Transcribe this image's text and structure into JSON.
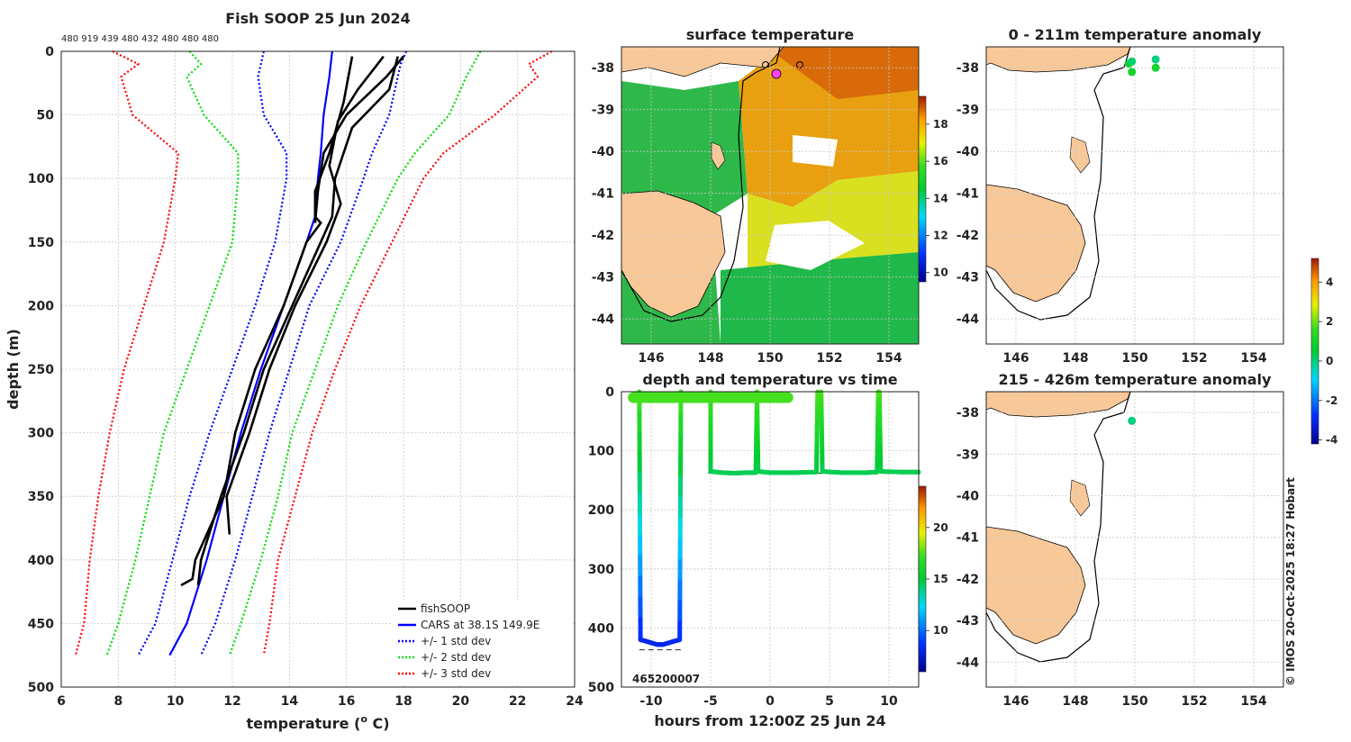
{
  "chart_data": [
    {
      "id": "profile",
      "type": "line",
      "title": "Fish SOOP 25 Jun 2024",
      "xlabel": "temperature",
      "xlabel_unit": "(",
      "xlabel_sup": "o",
      "xlabel_unit_end": " C)",
      "ylabel": "depth (m)",
      "xlim": [
        6,
        24
      ],
      "ylim": [
        500,
        0
      ],
      "xticks": [
        "6",
        "8",
        "10",
        "12",
        "14",
        "16",
        "18",
        "20",
        "22",
        "24"
      ],
      "yticks": [
        "0",
        "50",
        "100",
        "150",
        "200",
        "250",
        "300",
        "350",
        "400",
        "450",
        "500"
      ],
      "counts_label": "480 919 439 480 432 480 480 480",
      "legend": [
        "fishSOOP",
        "CARS at 38.1S 149.9E",
        "+/- 1 std dev",
        "+/- 2 std dev",
        "+/- 3 std dev"
      ],
      "series": [
        {
          "name": "CARS at 38.1S 149.9E",
          "color": "#0000ff",
          "depth": [
            0,
            20,
            50,
            80,
            100,
            130,
            150,
            200,
            250,
            300,
            350,
            400,
            450,
            475
          ],
          "temp": [
            15.5,
            15.4,
            15.2,
            15.1,
            15.0,
            14.9,
            14.6,
            13.8,
            13.0,
            12.3,
            11.7,
            11.1,
            10.4,
            9.8
          ]
        },
        {
          "name": "+1 std dev",
          "color": "#0000ff",
          "depth": [
            0,
            10,
            50,
            80,
            100,
            150,
            200,
            250,
            300,
            350,
            400,
            450,
            475
          ],
          "temp": [
            18.1,
            17.9,
            17.5,
            16.9,
            16.6,
            15.8,
            14.7,
            14.0,
            13.3,
            12.7,
            12.1,
            11.4,
            10.9
          ]
        },
        {
          "name": "-1 std dev",
          "color": "#0000ff",
          "depth": [
            0,
            20,
            50,
            80,
            100,
            150,
            200,
            250,
            300,
            350,
            400,
            450,
            475
          ],
          "temp": [
            13.1,
            12.9,
            13.1,
            13.9,
            13.9,
            13.5,
            12.8,
            12.0,
            11.2,
            10.5,
            9.9,
            9.3,
            8.7
          ]
        },
        {
          "name": "+2 std dev",
          "color": "#00dd00",
          "depth": [
            0,
            20,
            50,
            80,
            100,
            150,
            200,
            250,
            300,
            350,
            400,
            450,
            475
          ],
          "temp": [
            20.7,
            20.2,
            19.6,
            18.4,
            17.8,
            16.7,
            15.7,
            14.9,
            14.1,
            13.6,
            13.0,
            12.3,
            11.9
          ]
        },
        {
          "name": "-2 std dev",
          "color": "#00dd00",
          "depth": [
            0,
            10,
            20,
            50,
            80,
            100,
            150,
            200,
            250,
            300,
            350,
            400,
            450,
            475
          ],
          "temp": [
            10.5,
            10.9,
            10.4,
            11.0,
            12.2,
            12.2,
            12.0,
            11.2,
            10.4,
            9.6,
            9.1,
            8.6,
            8.0,
            7.6
          ]
        },
        {
          "name": "+3 std dev",
          "color": "#ff0000",
          "depth": [
            0,
            10,
            20,
            50,
            80,
            100,
            150,
            200,
            250,
            300,
            350,
            400,
            450,
            475
          ],
          "temp": [
            23.2,
            22.4,
            22.7,
            21.2,
            19.4,
            18.7,
            17.6,
            16.5,
            15.6,
            14.8,
            14.2,
            13.6,
            13.3,
            13.1
          ]
        },
        {
          "name": "-3 std dev",
          "color": "#ff0000",
          "depth": [
            0,
            10,
            20,
            50,
            80,
            100,
            150,
            200,
            250,
            300,
            350,
            400,
            450,
            475
          ],
          "temp": [
            7.8,
            8.7,
            8.1,
            8.5,
            10.1,
            10.0,
            9.6,
            8.9,
            8.2,
            7.7,
            7.3,
            7.0,
            6.8,
            6.5
          ]
        },
        {
          "name": "fishSOOP",
          "color": "#000000",
          "depth": [
            4,
            40,
            80,
            110,
            130,
            135,
            150,
            200,
            250,
            300,
            350,
            400,
            415,
            420
          ],
          "temp": [
            16.2,
            15.9,
            15.4,
            14.9,
            14.9,
            15.1,
            14.6,
            13.8,
            12.8,
            12.1,
            11.7,
            10.7,
            10.6,
            10.2
          ]
        },
        {
          "name": "fishSOOP",
          "color": "#000000",
          "depth": [
            4,
            30,
            55,
            90,
            120,
            150,
            200,
            250,
            300,
            350,
            380
          ],
          "temp": [
            17.3,
            16.4,
            15.7,
            15.4,
            15.8,
            15.3,
            14.2,
            13.3,
            12.6,
            11.8,
            11.9
          ]
        },
        {
          "name": "fishSOOP",
          "color": "#000000",
          "depth": [
            4,
            20,
            50,
            80,
            110,
            135
          ],
          "temp": [
            18.0,
            17.4,
            16.0,
            15.2,
            15.0,
            14.9
          ]
        },
        {
          "name": "fishSOOP",
          "color": "#000000",
          "depth": [
            4,
            30,
            60,
            100,
            130,
            150,
            200,
            250,
            300,
            350,
            400,
            420
          ],
          "temp": [
            17.8,
            17.5,
            16.2,
            15.6,
            15.5,
            15.1,
            14.1,
            13.1,
            12.4,
            11.6,
            10.9,
            10.8
          ]
        }
      ]
    },
    {
      "id": "sst",
      "type": "heatmap",
      "title": "surface temperature",
      "xticks": [
        "146",
        "148",
        "150",
        "152",
        "154"
      ],
      "yticks": [
        "-38",
        "-39",
        "-40",
        "-41",
        "-42",
        "-43",
        "-44"
      ],
      "xlim": [
        145,
        155
      ],
      "ylim": [
        -44.6,
        -37.5
      ],
      "colorbar": {
        "min": 9.5,
        "max": 19.5,
        "ticks": [
          "10",
          "12",
          "14",
          "16",
          "18"
        ]
      }
    },
    {
      "id": "timeseries",
      "type": "line",
      "title": "depth and temperature vs time",
      "xlabel": "hours from 12:00Z 25 Jun 24",
      "xticks": [
        "-10",
        "-5",
        "0",
        "5",
        "10"
      ],
      "yticks": [
        "0",
        "100",
        "200",
        "300",
        "400",
        "500"
      ],
      "xlim": [
        -12.5,
        12.5
      ],
      "ylim": [
        500,
        0
      ],
      "bottom_label": "465200007",
      "colorbar": {
        "min": 6,
        "max": 24,
        "ticks": [
          "10",
          "15",
          "20"
        ]
      },
      "segments": [
        {
          "t": [
            -11,
            -10.9,
            -10.5,
            -10,
            -9.5,
            -9,
            -8.5,
            -8,
            -7.6,
            -7.5
          ],
          "d": [
            0,
            420,
            422,
            425,
            428,
            428,
            425,
            422,
            420,
            0
          ]
        },
        {
          "t": [
            -5,
            -5,
            -4,
            -3,
            -2,
            -1.2,
            -1.1
          ],
          "d": [
            0,
            135,
            137,
            138,
            137,
            137,
            0
          ]
        },
        {
          "t": [
            -1.1,
            -1,
            0,
            2,
            3.9,
            4
          ],
          "d": [
            0,
            135,
            137,
            137,
            136,
            0
          ]
        },
        {
          "t": [
            4.3,
            4.4,
            6,
            8,
            9,
            9.1
          ],
          "d": [
            0,
            135,
            137,
            137,
            136,
            0
          ]
        },
        {
          "t": [
            9.2,
            9.3,
            11,
            12.5
          ],
          "d": [
            0,
            135,
            136,
            136
          ]
        }
      ],
      "surface": {
        "t": [
          -11.5,
          1.5
        ],
        "d": [
          10,
          10
        ]
      },
      "dashes": [
        {
          "t": [
            -11,
            -7.3
          ],
          "d": 437
        },
        {
          "t": [
            -5.2,
            12.5
          ],
          "d": 138
        }
      ]
    },
    {
      "id": "anomaly_shallow",
      "type": "scatter",
      "title": "0 - 211m temperature anomaly",
      "xticks": [
        "146",
        "148",
        "150",
        "152",
        "154"
      ],
      "yticks": [
        "-38",
        "-39",
        "-40",
        "-41",
        "-42",
        "-43",
        "-44"
      ],
      "xlim": [
        145,
        155
      ],
      "ylim": [
        -44.6,
        -37.5
      ],
      "points": [
        {
          "lon": 149.8,
          "lat": -37.9,
          "v": 0.8
        },
        {
          "lon": 149.9,
          "lat": -37.85,
          "v": 0.1
        },
        {
          "lon": 150.7,
          "lat": -37.8,
          "v": 0.0
        },
        {
          "lon": 150.7,
          "lat": -38.0,
          "v": 1.0
        },
        {
          "lon": 149.9,
          "lat": -38.1,
          "v": 0.9
        }
      ]
    },
    {
      "id": "anomaly_deep",
      "type": "scatter",
      "title": "215 - 426m temperature anomaly",
      "xticks": [
        "146",
        "148",
        "150",
        "152",
        "154"
      ],
      "yticks": [
        "-38",
        "-39",
        "-40",
        "-41",
        "-42",
        "-43",
        "-44"
      ],
      "xlim": [
        145,
        155
      ],
      "ylim": [
        -44.6,
        -37.5
      ],
      "points": [
        {
          "lon": 149.9,
          "lat": -38.2,
          "v": 0.0
        }
      ],
      "colorbar": {
        "min": -4.2,
        "max": 5.2,
        "ticks": [
          "4",
          "2",
          "0",
          "-2",
          "-4"
        ]
      }
    }
  ],
  "footer": {
    "credit": "© IMOS 20-Oct-2025 18:27 Hobart"
  }
}
